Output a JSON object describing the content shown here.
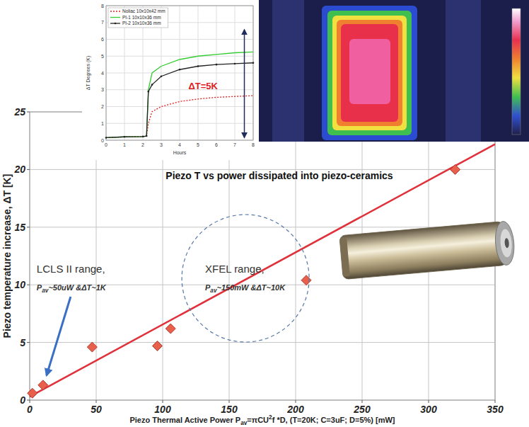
{
  "chart_data": [
    {
      "type": "scatter",
      "title": "Piezo T vs power dissipated into piezo-ceramics",
      "x_label": [
        "Piezo Thermal Active Power P",
        {
          "sub": "av"
        },
        "=πCU",
        {
          "sup": "2"
        },
        "f *D, (T=20K; C=3uF; D=5%) [mW]"
      ],
      "y_label": "Piezo temperature increase, ΔT [K]",
      "xlim": [
        0,
        350
      ],
      "xticks": [
        0,
        50,
        100,
        150,
        200,
        250,
        300,
        350
      ],
      "ylim": [
        0,
        25
      ],
      "yticks": [
        0,
        5,
        10,
        15,
        20,
        25
      ],
      "grid": true,
      "series": [
        {
          "type": "line",
          "color": "#e0303a",
          "line_style": "solid",
          "x": [
            0,
            350
          ],
          "values": [
            0.3,
            22.2
          ]
        },
        {
          "type": "scatter",
          "color": "#e8604c",
          "marker": "diamond",
          "x": [
            2,
            10,
            47,
            96,
            106,
            208,
            320
          ],
          "values": [
            0.6,
            1.3,
            4.6,
            4.7,
            6.2,
            10.4,
            20
          ]
        }
      ],
      "annotations": [
        {
          "text": "LCLS II range,",
          "detail": [
            "P",
            {
              "sub": "av"
            },
            "~50uW &ΔT~1K"
          ]
        },
        {
          "text": "XFEL range,",
          "detail": [
            "P",
            {
              "sub": "av"
            },
            "~150mW &ΔT~10K"
          ]
        }
      ]
    },
    {
      "type": "line",
      "x_label": "Hours",
      "y_label": "ΔT Degrees (K)",
      "xlim": [
        0,
        8
      ],
      "xticks": [
        0,
        1,
        2,
        3,
        4,
        5,
        6,
        7,
        8
      ],
      "ylim": [
        0,
        8
      ],
      "yticks": [
        0,
        1,
        2,
        3,
        4,
        5,
        6,
        7,
        8
      ],
      "grid": true,
      "legend": "upper left",
      "x": [
        0,
        1,
        2,
        2.2,
        2.3,
        2.5,
        3,
        4,
        5,
        6,
        7,
        8
      ],
      "series": [
        {
          "name": "Noliac 10x10x42 mm",
          "color": "#e02020",
          "line_style": "dotted",
          "values": [
            0.15,
            0.2,
            0.22,
            0.25,
            1.0,
            1.7,
            2.0,
            2.3,
            2.45,
            2.55,
            2.6,
            2.65
          ]
        },
        {
          "name": "PI-1 10x10x36 mm",
          "color": "#33cc33",
          "line_style": "solid",
          "values": [
            0.15,
            0.2,
            0.22,
            0.25,
            3.0,
            4.0,
            4.4,
            4.8,
            5.0,
            5.1,
            5.2,
            5.25
          ]
        },
        {
          "name": "PI-2 10x10x36 mm",
          "color": "#222222",
          "line_style": "solid",
          "marker": "circle",
          "values": [
            0.15,
            0.2,
            0.22,
            0.25,
            2.9,
            3.3,
            3.8,
            4.2,
            4.4,
            4.5,
            4.55,
            4.6
          ]
        }
      ],
      "annotations": [
        {
          "text": "ΔT=5K"
        }
      ]
    }
  ]
}
